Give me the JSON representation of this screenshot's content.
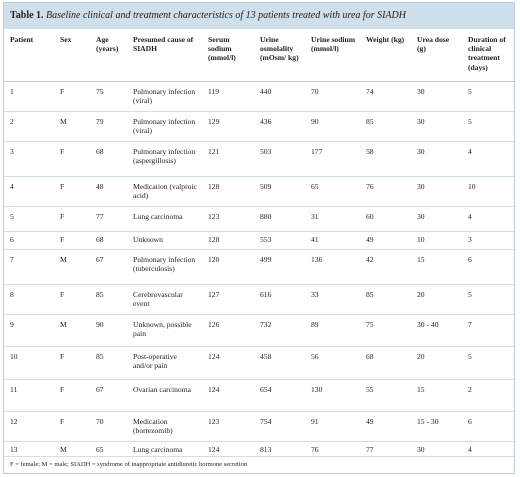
{
  "header": {
    "label": "Table 1.",
    "title": "Baseline clinical and treatment characteristics of 13 patients treated with urea for SIADH"
  },
  "table": {
    "headers": [
      "Patient",
      "Sex",
      "Age (years)",
      "Presumed cause of SIADH",
      "Serum sodium (mmol/l)",
      "Urine osmolality (mOsm/ kg)",
      "Urine sodium (mmol/l)",
      "Weight (kg)",
      "Urea dose (g)",
      "Duration of clinical treatment (days)"
    ],
    "rows": [
      [
        1,
        "F",
        75,
        "Pulmonary infection (viral)",
        119,
        440,
        70,
        74,
        30,
        5
      ],
      [
        2,
        "M",
        79,
        "Pulmonary infection (viral)",
        129,
        436,
        90,
        85,
        30,
        5
      ],
      [
        3,
        "F",
        68,
        "Pulmonary infection (aspergillosis)",
        121,
        503,
        177,
        58,
        30,
        4
      ],
      [
        4,
        "F",
        48,
        "Medication (valproic acid)",
        128,
        509,
        65,
        76,
        30,
        10
      ],
      [
        5,
        "F",
        77,
        "Lung carcinoma",
        123,
        880,
        31,
        60,
        30,
        4
      ],
      [
        6,
        "F",
        68,
        "Unknown",
        128,
        553,
        41,
        49,
        10,
        3
      ],
      [
        7,
        "M",
        67,
        "Pulmonary infection (tuberculosis)",
        120,
        499,
        136,
        42,
        15,
        6
      ],
      [
        8,
        "F",
        85,
        "Cerebrovascular event",
        127,
        616,
        33,
        85,
        20,
        5
      ],
      [
        9,
        "M",
        90,
        "Unknown, possible pain",
        126,
        732,
        89,
        75,
        "30 - 40",
        7
      ],
      [
        10,
        "F",
        85,
        "Post-operative and/or pain",
        124,
        458,
        56,
        68,
        20,
        5
      ],
      [
        11,
        "F",
        67,
        "Ovarian carcinoma",
        124,
        654,
        130,
        55,
        15,
        2
      ],
      [
        12,
        "F",
        70,
        "Medication (bortezomib)",
        123,
        754,
        91,
        49,
        "15 - 30",
        6
      ],
      [
        13,
        "M",
        65,
        "Lung carcinoma",
        124,
        813,
        76,
        77,
        30,
        4
      ]
    ]
  },
  "footnote": "F = female; M = male; SIADH = syndrome of inappropriate antidiuretic hormone secretion"
}
